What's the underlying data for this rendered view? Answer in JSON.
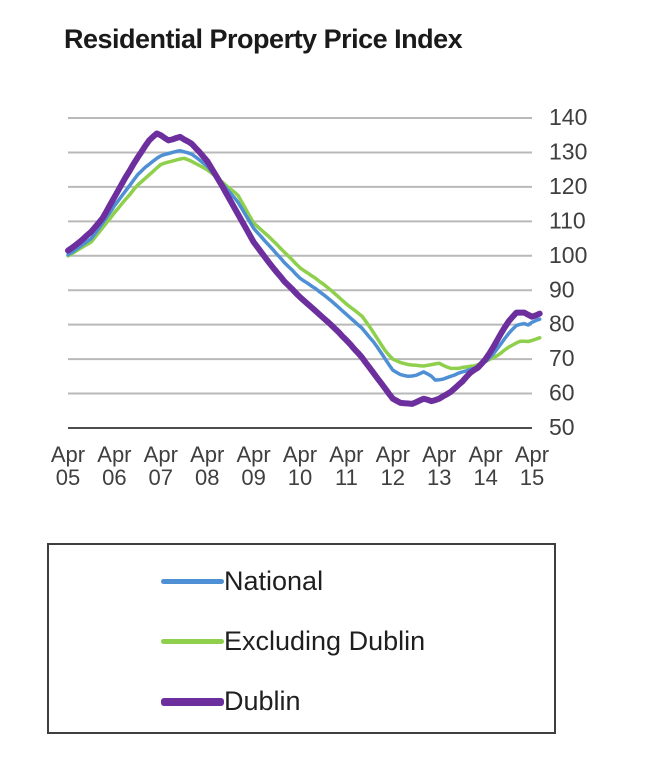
{
  "title": "Residential Property Price Index",
  "colors": {
    "national": "#4f90d5",
    "excluding_dublin": "#8ed04c",
    "dublin": "#6d2f9e",
    "gridline": "#b9b9b9",
    "baseline_axis": "#4d4d4d",
    "tick_text": "#3f3f3f",
    "title_text": "#1a1a1a",
    "legend_border": "#3f3f3f",
    "background": "#ffffff"
  },
  "chart_data": {
    "type": "line",
    "title": "Residential Property Price Index",
    "xlabel": "",
    "ylabel": "",
    "ylim": [
      50,
      140
    ],
    "y_ticks": [
      50,
      60,
      70,
      80,
      90,
      100,
      110,
      120,
      130,
      140
    ],
    "y_axis_side": "right",
    "grid": "horizontal",
    "x_tick_labels": [
      "Apr 05",
      "Apr 06",
      "Apr 07",
      "Apr 08",
      "Apr 09",
      "Apr 10",
      "Apr 11",
      "Apr 12",
      "Apr 13",
      "Apr 14",
      "Apr 15"
    ],
    "x_description": "monthly index values, Apr 2005 to mid 2015, base ~100 at Apr 2005",
    "legend": {
      "position": "bottom",
      "entries": [
        "National",
        "Excluding Dublin",
        "Dublin"
      ]
    },
    "series": [
      {
        "name": "National",
        "color": "#4f90d5",
        "line_width": 3.5,
        "values": [
          100.3,
          101.0,
          101.8,
          102.6,
          103.4,
          104.2,
          105.0,
          106.5,
          108.0,
          109.6,
          111.2,
          112.8,
          114.5,
          116.0,
          117.5,
          119.0,
          120.5,
          122.0,
          123.5,
          124.6,
          125.7,
          126.6,
          127.5,
          128.3,
          129.0,
          129.4,
          129.7,
          130.0,
          130.3,
          130.5,
          130.2,
          129.9,
          129.5,
          128.7,
          127.8,
          126.9,
          126.0,
          124.7,
          123.4,
          122.1,
          120.8,
          119.5,
          118.2,
          116.9,
          115.5,
          113.6,
          111.7,
          109.9,
          108.0,
          106.7,
          105.5,
          104.2,
          103.0,
          101.8,
          100.5,
          99.3,
          98.0,
          96.9,
          95.8,
          94.6,
          93.5,
          92.7,
          92.0,
          91.2,
          90.5,
          89.6,
          88.8,
          87.9,
          87.0,
          86.0,
          85.0,
          84.0,
          83.0,
          82.0,
          81.0,
          80.0,
          79.0,
          77.7,
          76.3,
          75.0,
          73.5,
          71.8,
          70.1,
          68.4,
          66.8,
          66.1,
          65.5,
          65.2,
          65.0,
          65.1,
          65.3,
          65.8,
          66.3,
          65.7,
          65.0,
          63.9,
          64.0,
          64.2,
          64.6,
          65.0,
          65.4,
          65.9,
          66.3,
          66.6,
          67.0,
          67.3,
          67.9,
          68.6,
          69.3,
          70.4,
          71.5,
          73.0,
          74.5,
          76.0,
          77.5,
          78.7,
          79.8,
          80.1,
          80.3,
          79.9,
          80.7,
          81.2,
          81.6
        ]
      },
      {
        "name": "Excluding Dublin",
        "color": "#8ed04c",
        "line_width": 3.5,
        "values": [
          100.0,
          100.6,
          101.3,
          102.0,
          102.7,
          103.3,
          104.0,
          105.4,
          106.8,
          108.2,
          109.6,
          111.0,
          112.5,
          113.8,
          115.2,
          116.5,
          117.8,
          119.2,
          120.5,
          121.5,
          122.5,
          123.5,
          124.5,
          125.5,
          126.5,
          126.9,
          127.2,
          127.5,
          127.8,
          128.1,
          128.3,
          127.9,
          127.4,
          126.8,
          126.2,
          125.6,
          125.0,
          124.1,
          123.2,
          122.2,
          121.3,
          120.3,
          119.4,
          118.5,
          117.5,
          115.5,
          113.5,
          111.5,
          109.5,
          108.5,
          107.5,
          106.5,
          105.5,
          104.4,
          103.3,
          102.1,
          101.0,
          99.9,
          98.8,
          97.6,
          96.5,
          95.7,
          95.0,
          94.2,
          93.5,
          92.6,
          91.8,
          90.9,
          90.0,
          89.0,
          88.0,
          87.0,
          86.0,
          85.1,
          84.3,
          83.4,
          82.5,
          81.0,
          79.4,
          77.7,
          76.0,
          74.2,
          72.5,
          71.2,
          70.0,
          69.5,
          69.0,
          68.7,
          68.4,
          68.3,
          68.2,
          68.1,
          68.0,
          68.2,
          68.4,
          68.6,
          68.8,
          68.2,
          67.7,
          67.3,
          67.3,
          67.3,
          67.6,
          67.7,
          67.9,
          68.0,
          68.4,
          68.8,
          69.3,
          69.9,
          70.4,
          71.0,
          71.8,
          72.7,
          73.5,
          74.1,
          74.7,
          75.2,
          75.2,
          75.1,
          75.4,
          75.8,
          76.2
        ]
      },
      {
        "name": "Dublin",
        "color": "#6d2f9e",
        "line_width": 6,
        "values": [
          101.5,
          102.3,
          103.1,
          104.0,
          105.0,
          106.0,
          107.0,
          108.3,
          109.6,
          111.0,
          113.0,
          115.0,
          117.0,
          119.0,
          121.0,
          123.0,
          124.8,
          126.7,
          128.5,
          130.2,
          131.9,
          133.5,
          134.6,
          135.5,
          135.0,
          134.2,
          133.5,
          133.8,
          134.2,
          134.5,
          133.8,
          133.2,
          132.5,
          131.3,
          130.1,
          128.8,
          127.5,
          125.6,
          123.8,
          121.9,
          120.0,
          118.0,
          116.0,
          114.0,
          112.0,
          110.0,
          108.0,
          106.0,
          104.0,
          102.5,
          101.0,
          99.5,
          98.0,
          96.6,
          95.2,
          93.9,
          92.5,
          91.4,
          90.3,
          89.1,
          88.0,
          87.0,
          86.0,
          85.0,
          84.0,
          83.0,
          82.0,
          81.0,
          80.0,
          78.9,
          77.8,
          76.6,
          75.5,
          74.3,
          73.0,
          71.8,
          70.5,
          69.0,
          67.5,
          66.0,
          64.5,
          63.0,
          61.5,
          60.0,
          58.5,
          57.9,
          57.3,
          57.2,
          57.1,
          57.0,
          57.5,
          58.0,
          58.5,
          58.2,
          57.8,
          58.1,
          58.5,
          59.2,
          59.8,
          60.5,
          61.5,
          62.5,
          63.5,
          64.8,
          66.0,
          66.8,
          67.5,
          68.7,
          70.0,
          71.7,
          73.5,
          75.5,
          77.5,
          79.3,
          81.0,
          82.3,
          83.5,
          83.5,
          83.5,
          82.9,
          82.3,
          82.7,
          83.2
        ]
      }
    ]
  }
}
